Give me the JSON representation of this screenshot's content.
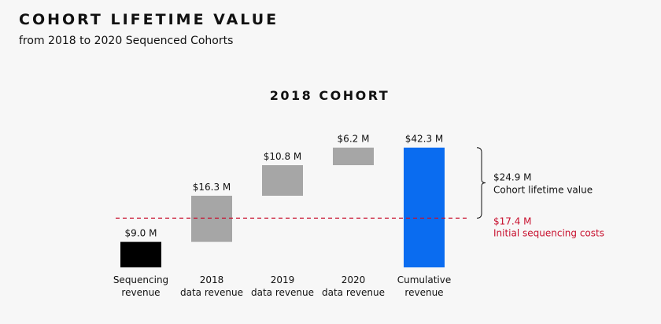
{
  "chart_data": {
    "type": "waterfall",
    "title": "COHORT LIFETIME VALUE",
    "subtitle": "from 2018 to 2020 Sequenced Cohorts",
    "chart_title": "2018 COHORT",
    "categories": [
      [
        "Sequencing",
        "revenue"
      ],
      [
        "2018",
        "data revenue"
      ],
      [
        "2019",
        "data revenue"
      ],
      [
        "2020",
        "data revenue"
      ],
      [
        "Cumulative",
        "revenue"
      ]
    ],
    "measure": [
      "absolute",
      "relative",
      "relative",
      "relative",
      "total"
    ],
    "values": [
      9.0,
      16.3,
      10.8,
      6.2,
      42.3
    ],
    "value_labels": [
      "$9.0 M",
      "$16.3 M",
      "$10.8 M",
      "$6.2 M",
      "$42.3 M"
    ],
    "colors": [
      "#000000",
      "#a6a6a6",
      "#a6a6a6",
      "#a6a6a6",
      "#0a6cf0"
    ],
    "reference_line": {
      "value": 17.4,
      "value_label": "$17.4 M",
      "label": "Initial sequencing costs",
      "color": "#c8102e"
    },
    "bracket": {
      "value": 24.9,
      "value_label": "$24.9 M",
      "label": "Cohort lifetime value"
    }
  }
}
